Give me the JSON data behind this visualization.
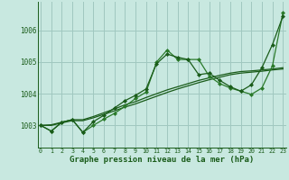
{
  "background_color": "#c8e8e0",
  "grid_color": "#a0c8c0",
  "line_color_dark": "#1a5c1a",
  "line_color_mid": "#2a7a2a",
  "xlabel": "Graphe pression niveau de la mer (hPa)",
  "xlabel_fontsize": 6.5,
  "yticks": [
    1003,
    1004,
    1005,
    1006
  ],
  "ylim": [
    1002.3,
    1006.9
  ],
  "xlim": [
    -0.3,
    23.3
  ],
  "series_zigzag1": [
    1003.0,
    1002.82,
    1003.1,
    1003.18,
    1002.78,
    1003.12,
    1003.32,
    1003.55,
    1003.78,
    1003.95,
    1004.15,
    1004.95,
    1005.25,
    1005.15,
    1005.08,
    1004.6,
    1004.65,
    1004.42,
    1004.22,
    1004.08,
    1004.28,
    1004.82,
    1005.55,
    1006.45
  ],
  "series_zigzag2": [
    1003.0,
    1002.82,
    1003.1,
    1003.18,
    1002.78,
    1003.0,
    1003.2,
    1003.38,
    1003.6,
    1003.85,
    1004.05,
    1005.0,
    1005.38,
    1005.08,
    1005.08,
    1005.08,
    1004.55,
    1004.32,
    1004.18,
    1004.08,
    1003.98,
    1004.18,
    1004.88,
    1006.55
  ],
  "series_trend1": [
    1003.0,
    1003.02,
    1003.1,
    1003.18,
    1003.18,
    1003.28,
    1003.4,
    1003.52,
    1003.65,
    1003.75,
    1003.88,
    1004.0,
    1004.12,
    1004.22,
    1004.32,
    1004.42,
    1004.5,
    1004.58,
    1004.65,
    1004.7,
    1004.72,
    1004.75,
    1004.78,
    1004.82
  ],
  "series_trend2": [
    1003.0,
    1003.0,
    1003.08,
    1003.15,
    1003.15,
    1003.24,
    1003.35,
    1003.46,
    1003.58,
    1003.68,
    1003.8,
    1003.92,
    1004.04,
    1004.15,
    1004.25,
    1004.35,
    1004.44,
    1004.52,
    1004.6,
    1004.65,
    1004.68,
    1004.71,
    1004.75,
    1004.78
  ],
  "marker": "D",
  "markersize": 2.0,
  "linewidth": 0.9
}
